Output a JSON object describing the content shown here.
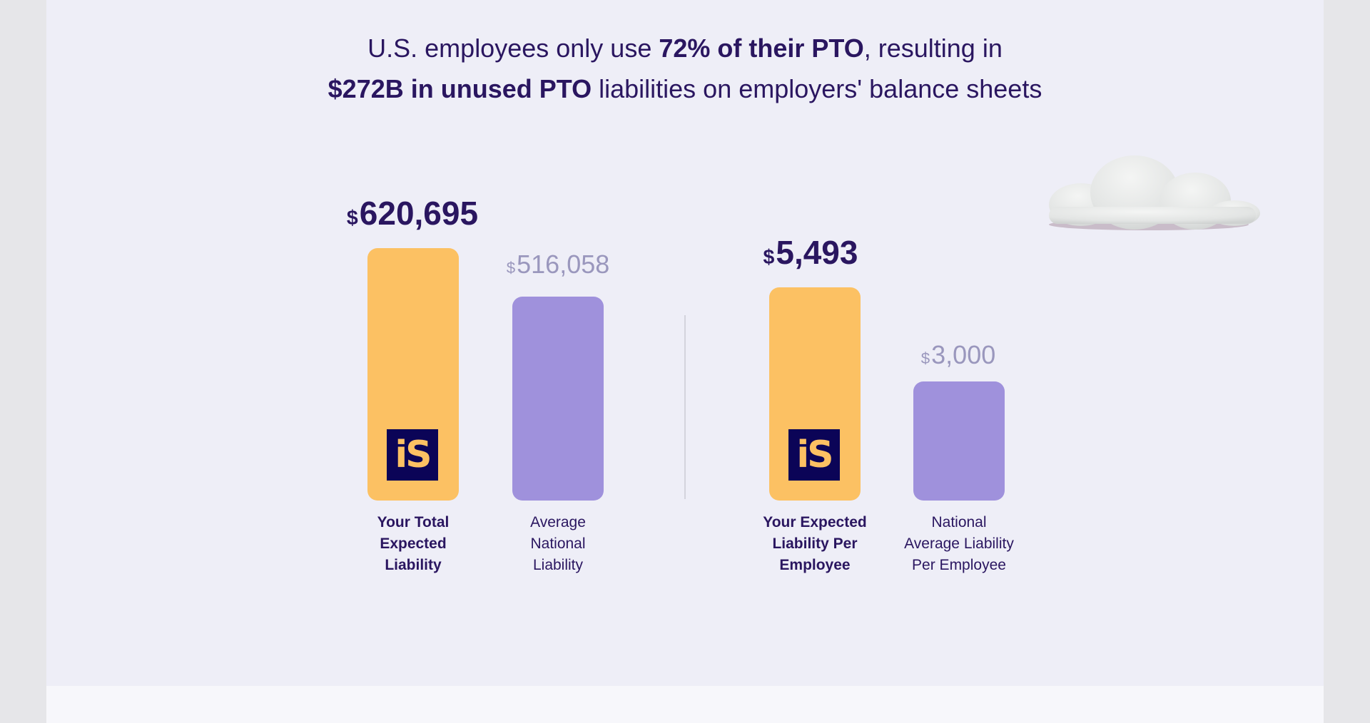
{
  "headline": {
    "line1_pre": "U.S. employees only use ",
    "line1_bold": "72% of their PTO",
    "line1_post": ", resulting in",
    "line2_bold": "$272B in unused PTO",
    "line2_post": " liabilities on employers' balance sheets"
  },
  "currency_symbol": "$",
  "groups": [
    {
      "bars": [
        {
          "value": "620,695",
          "label": [
            "Your Total",
            "Expected",
            "Liability"
          ],
          "color": "#fcc163",
          "logo": "iS"
        },
        {
          "value": "516,058",
          "label": [
            "Average",
            "National",
            "Liability"
          ],
          "color": "#9f91dc"
        }
      ]
    },
    {
      "bars": [
        {
          "value": "5,493",
          "label": [
            "Your Expected",
            "Liability Per",
            "Employee"
          ],
          "color": "#fcc163",
          "logo": "iS"
        },
        {
          "value": "3,000",
          "label": [
            "National",
            "Average Liability",
            "Per Employee"
          ],
          "color": "#9f91dc"
        }
      ]
    }
  ]
}
